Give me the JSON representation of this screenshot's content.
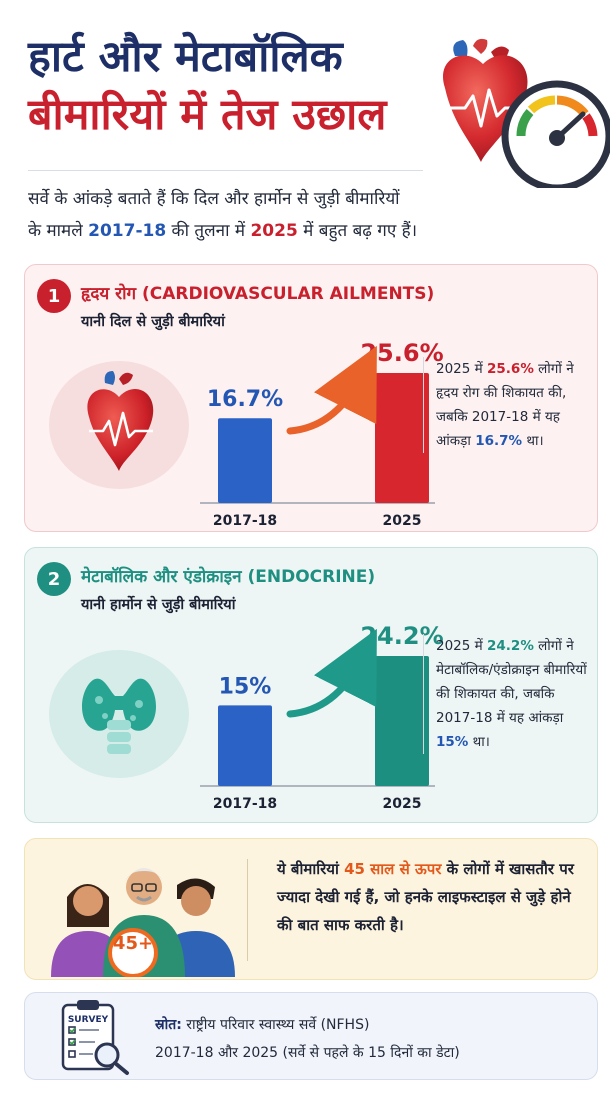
{
  "title": {
    "line1": "हार्ट और मेटाबॉलिक",
    "line2": "बीमारियों में तेज उछाल"
  },
  "intro": {
    "part1": "सर्वे के आंकड़े बताते हैं कि दिल और हार्मोन से जुड़ी बीमारियों",
    "part2": "के मामले ",
    "year_old": "2017-18",
    "part3": " की तुलना में ",
    "year_new": "2025",
    "part4": " में बहुत बढ़ गए हैं।"
  },
  "colors": {
    "navy": "#1d2f66",
    "red": "#c8202d",
    "teal": "#1f8f82",
    "blue": "#2357b3",
    "orange": "#e2591b"
  },
  "cards": [
    {
      "number": "1",
      "heading": "हृदय रोग (CARDIOVASCULAR AILMENTS)",
      "subheading": "यानी दिल से जुड़ी बीमारियां",
      "icon": "heart-icon",
      "side": {
        "p1": "2025 में ",
        "v_new": "25.6%",
        "p2": " लोगों ने हृदय रोग की शिकायत की, जबकि 2017-18 में यह आंकड़ा ",
        "v_old": "16.7%",
        "p3": " था।"
      }
    },
    {
      "number": "2",
      "heading": "मेटाबॉलिक और एंडोक्राइन (ENDOCRINE)",
      "subheading": "यानी हार्मोन से जुड़ी बीमारियां",
      "icon": "thyroid-icon",
      "side": {
        "p1": "2025 में ",
        "v_new": "24.2%",
        "p2": " लोगों ने मेटाबॉलिक/एंडोक्राइन बीमारियों की शिकायत की, जबकि 2017-18 में यह आंकड़ा ",
        "v_old": "15%",
        "p3": " था।"
      }
    }
  ],
  "chart_data": [
    {
      "type": "bar",
      "categories": [
        "2017-18",
        "2025"
      ],
      "values": [
        16.7,
        25.6
      ],
      "labels": [
        "16.7%",
        "25.6%"
      ],
      "colors": [
        "#2a63c5",
        "#d8262f"
      ],
      "label_colors": [
        "#2357b3",
        "#c8202d"
      ],
      "arrow_color": "#e8622a",
      "ylim": [
        0,
        25.6
      ]
    },
    {
      "type": "bar",
      "categories": [
        "2017-18",
        "2025"
      ],
      "values": [
        15,
        24.2
      ],
      "labels": [
        "15%",
        "24.2%"
      ],
      "colors": [
        "#2a63c5",
        "#1d8f80"
      ],
      "label_colors": [
        "#2357b3",
        "#1f8f82"
      ],
      "arrow_color": "#1f9a8a",
      "ylim": [
        0,
        24.2
      ]
    }
  ],
  "age_note": {
    "badge": "45+",
    "p1": "ये बीमारियां ",
    "highlight": "45 साल से ऊपर",
    "p2": " के लोगों में खासतौर पर ज्यादा देखी गई हैं, जो हनके लाइफस्टाइल से जुड़े होने की बात साफ करती है।"
  },
  "source": {
    "icon_label": "SURVEY",
    "label": "स्रोत:",
    "line1": " राष्ट्रीय परिवार स्वास्थ्य सर्वे (NFHS)",
    "line2": "2017-18 और 2025 (सर्वे से पहले के 15 दिनों का डेटा)"
  }
}
